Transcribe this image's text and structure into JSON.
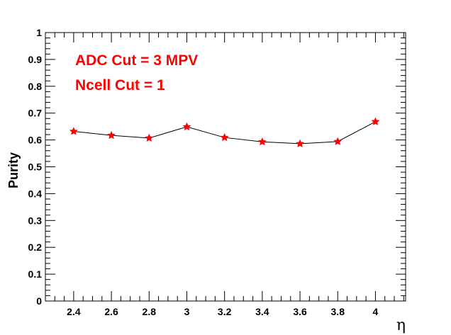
{
  "chart_data": {
    "type": "line",
    "title": "",
    "xlabel": "η",
    "ylabel": "Purity",
    "xlim": [
      2.25,
      4.16
    ],
    "ylim": [
      0,
      1
    ],
    "x_ticks": [
      "2.4",
      "2.6",
      "2.8",
      "3",
      "3.2",
      "3.4",
      "3.6",
      "3.8",
      "4"
    ],
    "y_ticks": [
      "0",
      "0.1",
      "0.2",
      "0.3",
      "0.4",
      "0.5",
      "0.6",
      "0.7",
      "0.8",
      "0.9",
      "1"
    ],
    "grid": false,
    "legend": "none",
    "annotations": [
      "ADC Cut = 3 MPV",
      "Ncell Cut = 1"
    ],
    "series": [
      {
        "x": [
          2.4,
          2.6,
          2.8,
          3.0,
          3.2,
          3.4,
          3.6,
          3.8,
          4.0
        ],
        "y": [
          0.632,
          0.617,
          0.607,
          0.649,
          0.609,
          0.593,
          0.586,
          0.594,
          0.668
        ]
      }
    ],
    "colors": {
      "marker": "#ff0000",
      "line": "#000000",
      "annotation": "#ff0000"
    }
  }
}
